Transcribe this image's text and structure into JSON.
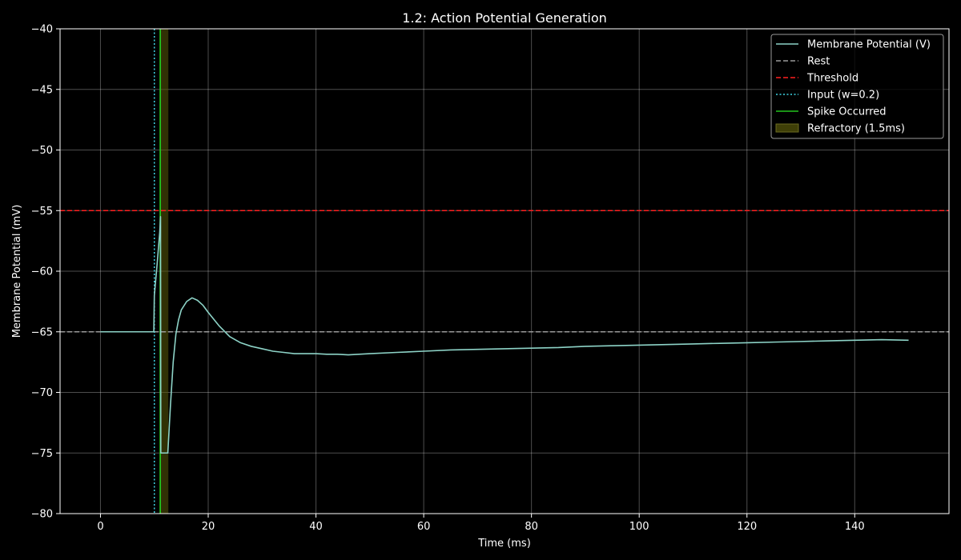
{
  "chart_data": {
    "type": "line",
    "title": "1.2: Action Potential Generation",
    "xlabel": "Time (ms)",
    "ylabel": "Membrane Potential (mV)",
    "xlim": [
      -7.5,
      157.5
    ],
    "ylim": [
      -80,
      -40
    ],
    "xticks": [
      0,
      20,
      40,
      60,
      80,
      100,
      120,
      140
    ],
    "yticks": [
      -80,
      -75,
      -70,
      -65,
      -60,
      -55,
      -50,
      -45,
      -40
    ],
    "grid": true,
    "legend_position": "top-right",
    "colors": {
      "background": "#000000",
      "membrane": "#8dd3c7",
      "rest": "#9a9a9a",
      "threshold": "#ff2020",
      "input": "#3fd5e6",
      "spike": "#22c41e",
      "refractory": "#5a5a0a"
    },
    "series": [
      {
        "name": "Membrane Potential (V)",
        "style": "solid",
        "x": [
          0,
          2,
          4,
          6,
          8,
          9.9,
          10,
          10.5,
          11,
          11.15,
          11.2,
          12,
          12.5,
          13,
          13.5,
          14,
          14.5,
          15,
          16,
          17,
          18,
          19,
          20,
          22,
          24,
          26,
          28,
          30,
          32,
          34,
          36,
          38,
          40,
          42,
          44,
          46,
          48,
          50,
          55,
          60,
          65,
          70,
          75,
          80,
          85,
          90,
          95,
          100,
          105,
          110,
          115,
          120,
          125,
          130,
          135,
          140,
          145,
          150
        ],
        "y": [
          -65,
          -65,
          -65,
          -65,
          -65,
          -65,
          -62,
          -59.5,
          -56.8,
          -55.5,
          -75,
          -75,
          -75,
          -71,
          -67.5,
          -65.2,
          -64,
          -63.2,
          -62.5,
          -62.2,
          -62.4,
          -62.8,
          -63.4,
          -64.5,
          -65.4,
          -65.9,
          -66.2,
          -66.4,
          -66.6,
          -66.7,
          -66.8,
          -66.8,
          -66.8,
          -66.85,
          -66.85,
          -66.9,
          -66.85,
          -66.8,
          -66.7,
          -66.6,
          -66.5,
          -66.45,
          -66.4,
          -66.35,
          -66.3,
          -66.2,
          -66.15,
          -66.1,
          -66.05,
          -66,
          -65.95,
          -65.9,
          -65.85,
          -65.8,
          -65.75,
          -65.7,
          -65.65,
          -65.7
        ]
      },
      {
        "name": "Rest",
        "style": "dashed",
        "y_const": -65
      },
      {
        "name": "Threshold",
        "style": "dashed",
        "y_const": -55
      },
      {
        "name": "Input (w=0.2)",
        "style": "dotted",
        "x_const": 10
      },
      {
        "name": "Spike Occurred",
        "style": "solid",
        "x_const": 11.1
      },
      {
        "name": "Refractory (1.5ms)",
        "style": "band",
        "x_range": [
          11.1,
          12.6
        ]
      }
    ]
  }
}
